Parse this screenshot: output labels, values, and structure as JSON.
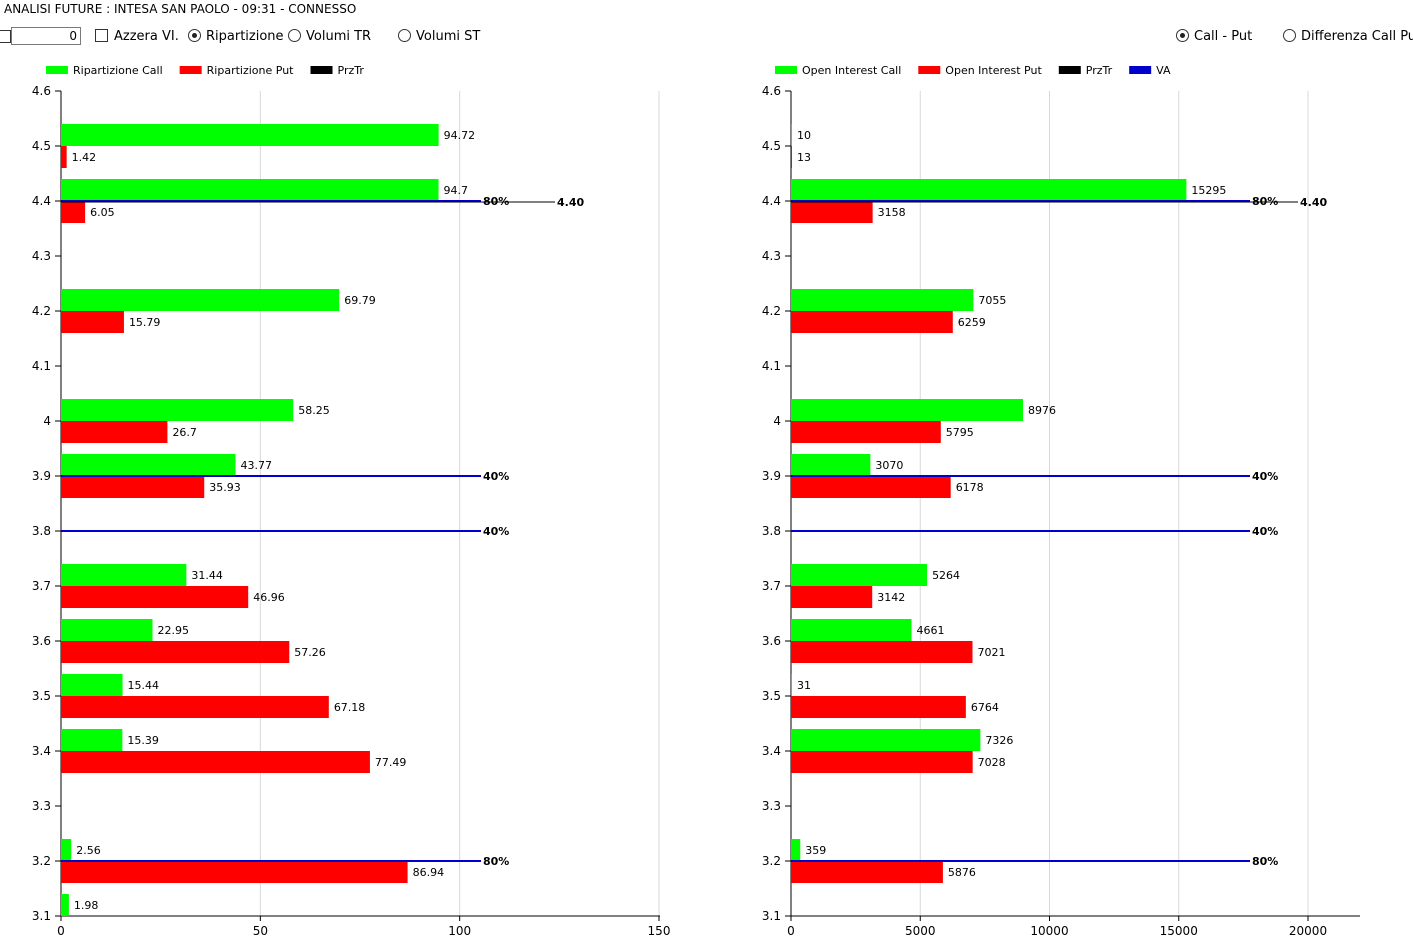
{
  "window": {
    "title": "ANALISI FUTURE : INTESA SAN PAOLO - 09:31 - CONNESSO"
  },
  "toolbar": {
    "number_value": "0",
    "azzera_label": "Azzera VI.",
    "options": [
      {
        "label": "Ripartizione",
        "selected": true
      },
      {
        "label": "Volumi TR",
        "selected": false
      },
      {
        "label": "Volumi ST",
        "selected": false
      }
    ],
    "right_options": [
      {
        "label": "Call - Put",
        "selected": true
      },
      {
        "label": "Differenza Call Put",
        "selected": false
      }
    ]
  },
  "colors": {
    "call": "#00ff00",
    "put": "#ff0000",
    "prztr": "#000000",
    "va": "#0000cc"
  },
  "chart_data": [
    {
      "type": "bar",
      "orientation": "horizontal",
      "legend": [
        "Ripartizione Call",
        "Ripartizione Put",
        "PrzTr"
      ],
      "y_ticks": [
        "4.6",
        "4.5",
        "4.4",
        "4.3",
        "4.2",
        "4.1",
        "4",
        "3.9",
        "3.8",
        "3.7",
        "3.6",
        "3.5",
        "3.4",
        "3.3",
        "3.2",
        "3.1"
      ],
      "x_ticks": [
        "0",
        "50",
        "100",
        "150"
      ],
      "xlim": [
        0,
        150
      ],
      "grid": true,
      "series": [
        {
          "name": "Ripartizione Call",
          "points": [
            {
              "y": 4.5,
              "v": 94.72,
              "label": "94.72"
            },
            {
              "y": 4.4,
              "v": 94.7,
              "label": "94.7"
            },
            {
              "y": 4.2,
              "v": 69.79,
              "label": "69.79"
            },
            {
              "y": 4.0,
              "v": 58.25,
              "label": "58.25"
            },
            {
              "y": 3.9,
              "v": 43.77,
              "label": "43.77"
            },
            {
              "y": 3.7,
              "v": 31.44,
              "label": "31.44"
            },
            {
              "y": 3.6,
              "v": 22.95,
              "label": "22.95"
            },
            {
              "y": 3.5,
              "v": 15.44,
              "label": "15.44"
            },
            {
              "y": 3.4,
              "v": 15.39,
              "label": "15.39"
            },
            {
              "y": 3.2,
              "v": 2.56,
              "label": "2.56"
            },
            {
              "y": 3.1,
              "v": 1.98,
              "label": "1.98"
            }
          ]
        },
        {
          "name": "Ripartizione Put",
          "points": [
            {
              "y": 4.5,
              "v": 1.42,
              "label": "1.42"
            },
            {
              "y": 4.4,
              "v": 6.05,
              "label": "6.05"
            },
            {
              "y": 4.2,
              "v": 15.79,
              "label": "15.79"
            },
            {
              "y": 4.0,
              "v": 26.7,
              "label": "26.7"
            },
            {
              "y": 3.9,
              "v": 35.93,
              "label": "35.93"
            },
            {
              "y": 3.7,
              "v": 46.96,
              "label": "46.96"
            },
            {
              "y": 3.6,
              "v": 57.26,
              "label": "57.26"
            },
            {
              "y": 3.5,
              "v": 67.18,
              "label": "67.18"
            },
            {
              "y": 3.4,
              "v": 77.49,
              "label": "77.49"
            },
            {
              "y": 3.2,
              "v": 86.94,
              "label": "86.94"
            }
          ]
        }
      ],
      "lines": [
        {
          "y": 4.4,
          "label": "80%"
        },
        {
          "y": 3.9,
          "label": "40%"
        },
        {
          "y": 3.8,
          "label": "40%"
        },
        {
          "y": 3.2,
          "label": "80%"
        }
      ],
      "prztr": {
        "y": 4.4,
        "label": "4.40"
      }
    },
    {
      "type": "bar",
      "orientation": "horizontal",
      "legend": [
        "Open Interest Call",
        "Open Interest Put",
        "PrzTr",
        "VA"
      ],
      "y_ticks": [
        "4.6",
        "4.5",
        "4.4",
        "4.3",
        "4.2",
        "4.1",
        "4",
        "3.9",
        "3.8",
        "3.7",
        "3.6",
        "3.5",
        "3.4",
        "3.3",
        "3.2",
        "3.1"
      ],
      "x_ticks": [
        "0",
        "5000",
        "10000",
        "15000",
        "20000"
      ],
      "xlim": [
        0,
        20000
      ],
      "grid": true,
      "series": [
        {
          "name": "Open Interest Call",
          "points": [
            {
              "y": 4.5,
              "v": 10,
              "label": "10"
            },
            {
              "y": 4.4,
              "v": 15295,
              "label": "15295"
            },
            {
              "y": 4.2,
              "v": 7055,
              "label": "7055"
            },
            {
              "y": 4.0,
              "v": 8976,
              "label": "8976"
            },
            {
              "y": 3.9,
              "v": 3070,
              "label": "3070"
            },
            {
              "y": 3.7,
              "v": 5264,
              "label": "5264"
            },
            {
              "y": 3.6,
              "v": 4661,
              "label": "4661"
            },
            {
              "y": 3.5,
              "v": 31,
              "label": "31"
            },
            {
              "y": 3.4,
              "v": 7326,
              "label": "7326"
            },
            {
              "y": 3.2,
              "v": 359,
              "label": "359"
            }
          ]
        },
        {
          "name": "Open Interest Put",
          "points": [
            {
              "y": 4.5,
              "v": 13,
              "label": "13"
            },
            {
              "y": 4.4,
              "v": 3158,
              "label": "3158"
            },
            {
              "y": 4.2,
              "v": 6259,
              "label": "6259"
            },
            {
              "y": 4.0,
              "v": 5795,
              "label": "5795"
            },
            {
              "y": 3.9,
              "v": 6178,
              "label": "6178"
            },
            {
              "y": 3.7,
              "v": 3142,
              "label": "3142"
            },
            {
              "y": 3.6,
              "v": 7021,
              "label": "7021"
            },
            {
              "y": 3.5,
              "v": 6764,
              "label": "6764"
            },
            {
              "y": 3.4,
              "v": 7028,
              "label": "7028"
            },
            {
              "y": 3.2,
              "v": 5876,
              "label": "5876"
            }
          ]
        }
      ],
      "lines": [
        {
          "y": 4.4,
          "label": "80%"
        },
        {
          "y": 3.9,
          "label": "40%"
        },
        {
          "y": 3.8,
          "label": "40%"
        },
        {
          "y": 3.2,
          "label": "80%"
        }
      ],
      "prztr": {
        "y": 4.4,
        "label": "4.40"
      }
    }
  ]
}
